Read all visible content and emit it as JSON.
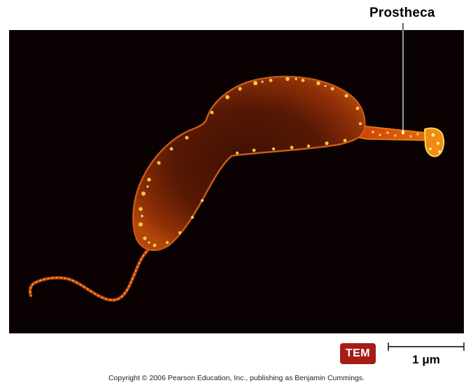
{
  "callout": {
    "label": "Prostheca"
  },
  "badge": {
    "label": "TEM",
    "color": "#a51d15"
  },
  "scale_bar": {
    "label": "1 μm"
  },
  "footer": {
    "copyright": "Copyright © 2006 Pearson Education, Inc., publishing as Benjamin Cummings."
  },
  "micrograph": {
    "subject": "stalked bacterial cell with flagellum",
    "background_color": "#0a0202",
    "palette": [
      "#1a0603",
      "#6b1a06",
      "#c8420a",
      "#f08a18",
      "#ffd84a"
    ]
  }
}
